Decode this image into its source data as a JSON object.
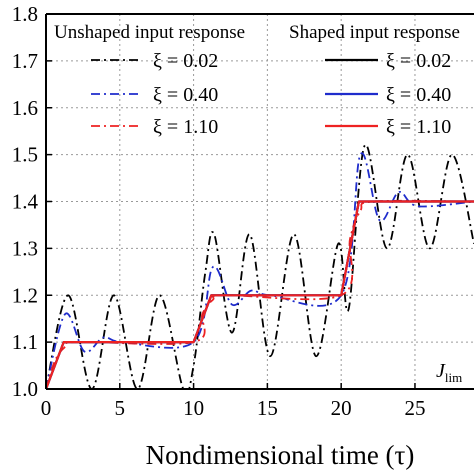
{
  "chart_data": {
    "type": "line",
    "xlabel": "Nondimensional time (τ)",
    "ylabel": "",
    "xlim": [
      0,
      29
    ],
    "ylim": [
      1.0,
      1.8
    ],
    "x_ticks": [
      "0",
      "5",
      "10",
      "15",
      "20",
      "25"
    ],
    "y_ticks": [
      "1.0",
      "1.1",
      "1.2",
      "1.3",
      "1.4",
      "1.5",
      "1.6",
      "1.7",
      "1.8"
    ],
    "grid": true,
    "annotation": "J_lim",
    "annotation_main": "J",
    "annotation_sub": "lim",
    "legend_placement": "top",
    "legend_groups": [
      {
        "heading": "Unshaped input response",
        "style": "dash-dot",
        "entries": [
          {
            "label": "ξ = 0.02",
            "color": "#000000"
          },
          {
            "label": "ξ = 0.40",
            "color": "#1f2ccc"
          },
          {
            "label": "ξ = 1.10",
            "color": "#ee2222"
          }
        ]
      },
      {
        "heading": "Shaped input response",
        "style": "solid",
        "entries": [
          {
            "label": "ξ = 0.02",
            "color": "#000000"
          },
          {
            "label": "ξ = 0.40",
            "color": "#1f2ccc"
          },
          {
            "label": "ξ = 1.10",
            "color": "#ee2222"
          }
        ]
      }
    ],
    "step_times": [
      0,
      10,
      20
    ],
    "step_size": 0.1,
    "series": [
      {
        "group": "unshaped",
        "xi": 0.02,
        "color": "#000000",
        "style": "dash-dot",
        "points": [
          [
            0,
            1.0
          ],
          [
            1.5,
            1.2
          ],
          [
            3.1,
            1.0
          ],
          [
            4.6,
            1.2
          ],
          [
            6.2,
            1.0
          ],
          [
            7.7,
            1.2
          ],
          [
            9.3,
            1.0
          ],
          [
            10.0,
            1.05
          ],
          [
            10.8,
            1.25
          ],
          [
            11.4,
            1.33
          ],
          [
            12.6,
            1.12
          ],
          [
            13.8,
            1.33
          ],
          [
            15.2,
            1.07
          ],
          [
            16.8,
            1.33
          ],
          [
            18.3,
            1.07
          ],
          [
            19.8,
            1.31
          ],
          [
            20.5,
            1.17
          ],
          [
            21.6,
            1.52
          ],
          [
            23.1,
            1.3
          ],
          [
            24.5,
            1.5
          ],
          [
            26.0,
            1.3
          ],
          [
            27.5,
            1.5
          ],
          [
            29.0,
            1.31
          ]
        ]
      },
      {
        "group": "unshaped",
        "xi": 0.4,
        "color": "#1f2ccc",
        "style": "dash-dot",
        "points": [
          [
            0,
            1.0
          ],
          [
            1.3,
            1.16
          ],
          [
            2.6,
            1.08
          ],
          [
            3.9,
            1.11
          ],
          [
            5.2,
            1.1
          ],
          [
            10.0,
            1.1
          ],
          [
            11.3,
            1.26
          ],
          [
            12.6,
            1.18
          ],
          [
            13.9,
            1.21
          ],
          [
            15.2,
            1.2
          ],
          [
            20.0,
            1.2
          ],
          [
            21.3,
            1.5
          ],
          [
            22.6,
            1.36
          ],
          [
            23.9,
            1.42
          ],
          [
            25.2,
            1.39
          ],
          [
            29.0,
            1.4
          ]
        ]
      },
      {
        "group": "unshaped",
        "xi": 1.1,
        "color": "#ee2222",
        "style": "dash-dot",
        "points": [
          [
            0,
            1.0
          ],
          [
            0.6,
            1.06
          ],
          [
            1.3,
            1.09
          ],
          [
            2.2,
            1.1
          ],
          [
            10.0,
            1.1
          ],
          [
            10.6,
            1.16
          ],
          [
            11.3,
            1.19
          ],
          [
            12.2,
            1.2
          ],
          [
            20.0,
            1.2
          ],
          [
            20.6,
            1.32
          ],
          [
            21.3,
            1.38
          ],
          [
            22.2,
            1.4
          ],
          [
            29.0,
            1.4
          ]
        ]
      },
      {
        "group": "shaped",
        "xi": 0.02,
        "color": "#000000",
        "style": "solid",
        "points": [
          [
            0,
            1.0
          ],
          [
            1.2,
            1.1
          ],
          [
            10.0,
            1.1
          ],
          [
            11.2,
            1.2
          ],
          [
            20.0,
            1.2
          ],
          [
            21.2,
            1.4
          ],
          [
            29.0,
            1.4
          ]
        ]
      },
      {
        "group": "shaped",
        "xi": 0.4,
        "color": "#1f2ccc",
        "style": "solid",
        "points": [
          [
            0,
            1.0
          ],
          [
            1.2,
            1.1
          ],
          [
            10.0,
            1.1
          ],
          [
            11.2,
            1.2
          ],
          [
            20.0,
            1.2
          ],
          [
            21.2,
            1.4
          ],
          [
            29.0,
            1.4
          ]
        ]
      },
      {
        "group": "shaped",
        "xi": 1.1,
        "color": "#ee2222",
        "style": "solid",
        "points": [
          [
            0,
            1.0
          ],
          [
            1.2,
            1.1
          ],
          [
            10.0,
            1.1
          ],
          [
            11.2,
            1.2
          ],
          [
            20.0,
            1.2
          ],
          [
            21.2,
            1.4
          ],
          [
            29.0,
            1.4
          ]
        ]
      }
    ]
  }
}
